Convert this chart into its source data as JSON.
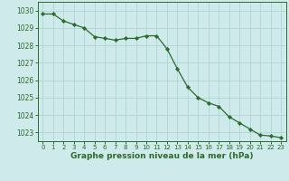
{
  "hours": [
    0,
    1,
    2,
    3,
    4,
    5,
    6,
    7,
    8,
    9,
    10,
    11,
    12,
    13,
    14,
    15,
    16,
    17,
    18,
    19,
    20,
    21,
    22,
    23
  ],
  "pressure": [
    1029.8,
    1029.8,
    1029.4,
    1029.2,
    1029.0,
    1028.5,
    1028.4,
    1028.3,
    1028.4,
    1028.4,
    1028.55,
    1028.55,
    1027.8,
    1026.65,
    1025.6,
    1025.0,
    1024.7,
    1024.5,
    1023.9,
    1023.55,
    1023.2,
    1022.85,
    1022.8,
    1022.7
  ],
  "line_color": "#2d6a2d",
  "marker_color": "#2d6a2d",
  "bg_color": "#ceeaea",
  "grid_color": "#b0d4d4",
  "xlabel": "Graphe pression niveau de la mer (hPa)",
  "xlabel_color": "#2d6a2d",
  "tick_color": "#2d6a2d",
  "ylim_min": 1022.5,
  "ylim_max": 1030.5,
  "yticks": [
    1023,
    1024,
    1025,
    1026,
    1027,
    1028,
    1029,
    1030
  ],
  "xticks": [
    0,
    1,
    2,
    3,
    4,
    5,
    6,
    7,
    8,
    9,
    10,
    11,
    12,
    13,
    14,
    15,
    16,
    17,
    18,
    19,
    20,
    21,
    22,
    23
  ],
  "xtick_labels": [
    "0",
    "1",
    "2",
    "3",
    "4",
    "5",
    "6",
    "7",
    "8",
    "9",
    "10",
    "11",
    "12",
    "13",
    "14",
    "15",
    "16",
    "17",
    "18",
    "19",
    "20",
    "21",
    "22",
    "23"
  ]
}
